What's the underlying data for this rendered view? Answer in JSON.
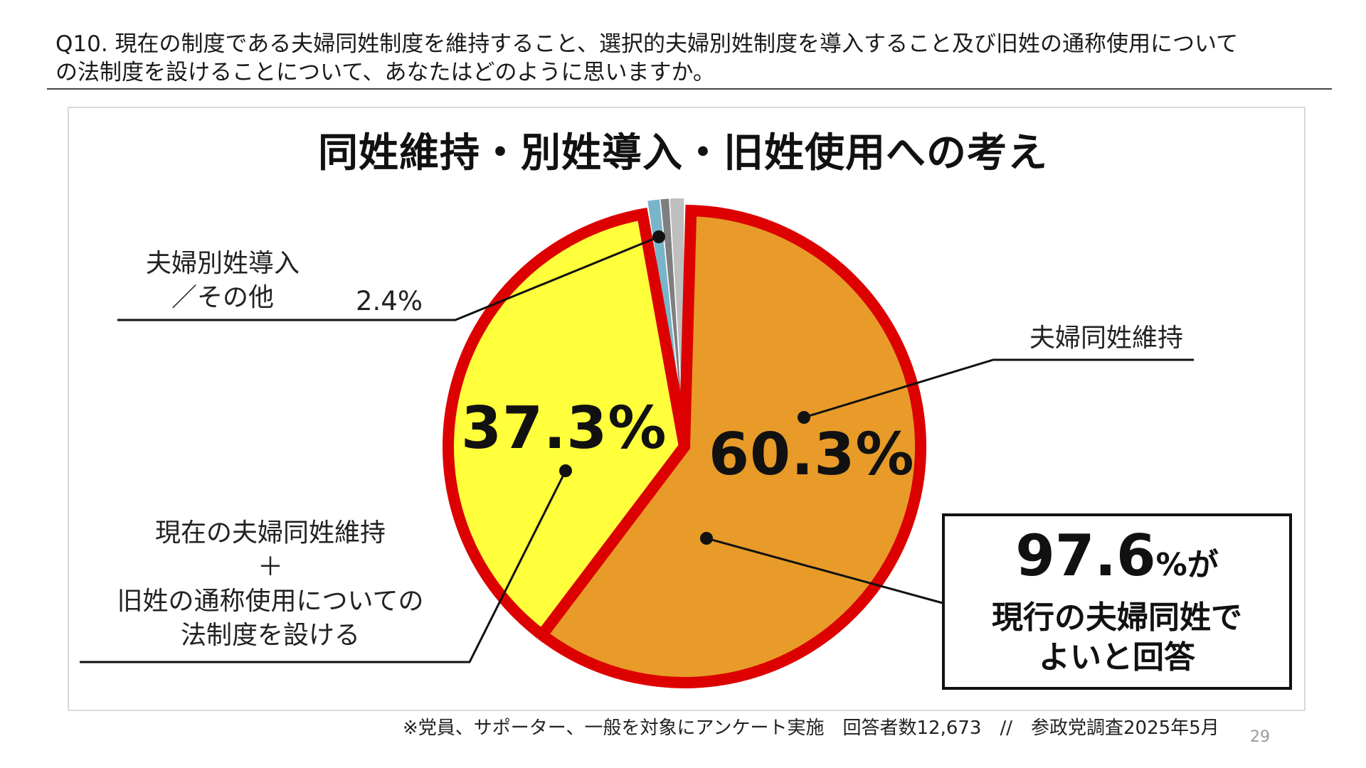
{
  "question": {
    "line1": "Q10. 現在の制度である夫婦同姓制度を維持すること、選択的夫婦別姓制度を導入すること及び旧姓の通称使用について",
    "line2": "の法制度を設けることについて、あなたはどのように思いますか。"
  },
  "chart_data": {
    "type": "pie",
    "title": "同姓維持・別姓導入・旧姓使用への考え",
    "slices": [
      {
        "label": "夫婦同姓維持",
        "value": 60.3,
        "display": "60.3%",
        "color": "#E89B28"
      },
      {
        "label": "現在の夫婦同姓維持 ＋ 旧姓の通称使用についての法制度を設ける",
        "value": 37.3,
        "display": "37.3%",
        "color": "#FFFF3C"
      },
      {
        "label": "夫婦別姓導入／その他",
        "value": 2.4,
        "display": "2.4%",
        "color": "#BFBFBF"
      }
    ],
    "highlight_border_color": "#DD0000",
    "start_angle_deg": 0,
    "direction": "clockwise"
  },
  "labels": {
    "other_line1": "夫婦別姓導入",
    "other_line2": "／その他",
    "other_pct": "2.4%",
    "maintain": "夫婦同姓維持",
    "oldname_line1": "現在の夫婦同姓維持",
    "oldname_line2": "＋",
    "oldname_line3": "旧姓の通称使用についての",
    "oldname_line4": "法制度を設ける",
    "pct_yellow": "37.3%",
    "pct_orange": "60.3%"
  },
  "callout": {
    "number": "97.6",
    "suffix": "%が",
    "line2": "現行の夫婦同姓で",
    "line3": "よいと回答"
  },
  "footnote": "※党員、サポーター、一般を対象にアンケート実施　回答者数12,673　//　参政党調査2025年5月",
  "page_number": "29"
}
